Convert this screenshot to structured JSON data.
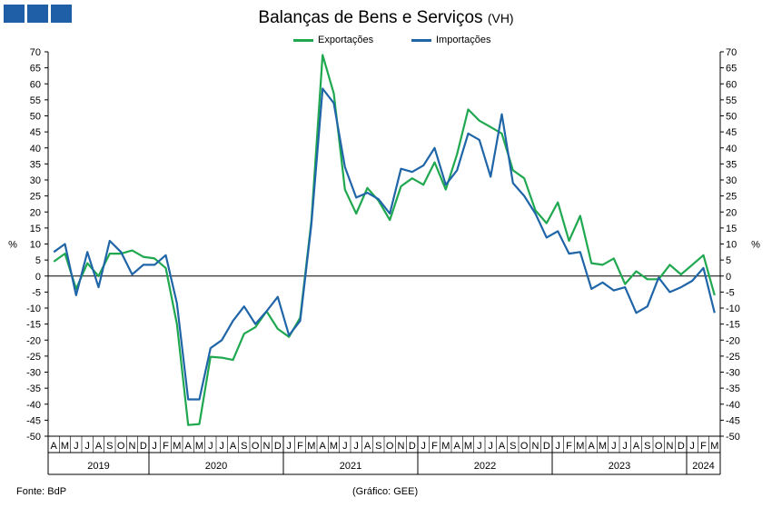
{
  "header": {
    "title": "Balanças de Bens e Serviços",
    "subtitle": "(VH)"
  },
  "footer": {
    "source": "Fonte: BdP",
    "credit": "(Gráfico: GEE)"
  },
  "colors": {
    "exports": "#1fa84f",
    "imports": "#1f65a8",
    "logo": "#1f5fa8"
  },
  "chart_data": {
    "type": "line",
    "ylabel_left": "%",
    "ylabel_right": "%",
    "ylim": [
      -50,
      70
    ],
    "ystep": 5,
    "grid": false,
    "legend_position": "top",
    "month_labels": [
      "A",
      "M",
      "J",
      "J",
      "A",
      "S",
      "O",
      "N",
      "D",
      "J",
      "F",
      "M",
      "A",
      "M",
      "J",
      "J",
      "A",
      "S",
      "O",
      "N",
      "D",
      "J",
      "F",
      "M",
      "A",
      "M",
      "J",
      "J",
      "A",
      "S",
      "O",
      "N",
      "D",
      "J",
      "F",
      "M",
      "A",
      "M",
      "J",
      "J",
      "A",
      "S",
      "O",
      "N",
      "D",
      "J",
      "F",
      "M",
      "A",
      "M",
      "J",
      "J",
      "A",
      "S",
      "O",
      "N",
      "D",
      "J",
      "F",
      "M"
    ],
    "years": [
      {
        "label": "2019",
        "start": 0,
        "count": 9
      },
      {
        "label": "2020",
        "start": 9,
        "count": 12
      },
      {
        "label": "2021",
        "start": 21,
        "count": 12
      },
      {
        "label": "2022",
        "start": 33,
        "count": 12
      },
      {
        "label": "2023",
        "start": 45,
        "count": 12
      },
      {
        "label": "2024",
        "start": 57,
        "count": 3
      }
    ],
    "series": [
      {
        "name": "Exportações",
        "key": "exports",
        "values": [
          4.5,
          7,
          -4,
          4,
          0,
          7,
          7,
          8,
          6,
          5.5,
          2.5,
          -15,
          -46.5,
          -46.2,
          -25.2,
          -25.5,
          -26.2,
          -18,
          -16,
          -11,
          -16.5,
          -19,
          -13,
          17,
          69,
          57,
          27,
          19.5,
          27.5,
          23.5,
          17.5,
          28,
          30.5,
          28.5,
          35.5,
          27,
          38,
          52,
          48.5,
          46.5,
          44.5,
          33,
          30.5,
          20.5,
          16.5,
          23,
          11,
          18.8,
          4,
          3.5,
          5.5,
          -2.5,
          1.5,
          -1,
          -1,
          3.5,
          0.5,
          3.5,
          6.5,
          -6
        ]
      },
      {
        "name": "Importações",
        "key": "imports",
        "values": [
          7.5,
          10,
          -6,
          7.5,
          -3.5,
          11,
          7.5,
          0.5,
          3.5,
          3.5,
          6.5,
          -8.5,
          -38.5,
          -38.5,
          -22.5,
          -20,
          -14,
          -9.5,
          -15,
          -11,
          -6.5,
          -18.5,
          -14,
          16,
          58.5,
          54,
          34,
          24.5,
          26,
          24,
          19.5,
          33.5,
          32.5,
          34.5,
          40,
          28.5,
          33,
          44.5,
          42.5,
          31,
          50.5,
          29,
          25,
          19.5,
          12,
          14,
          7,
          7.5,
          -4,
          -2,
          -4.5,
          -3.5,
          -11.5,
          -9.5,
          -0.5,
          -5,
          -3.5,
          -1.5,
          2.5,
          -11.5
        ]
      }
    ]
  }
}
